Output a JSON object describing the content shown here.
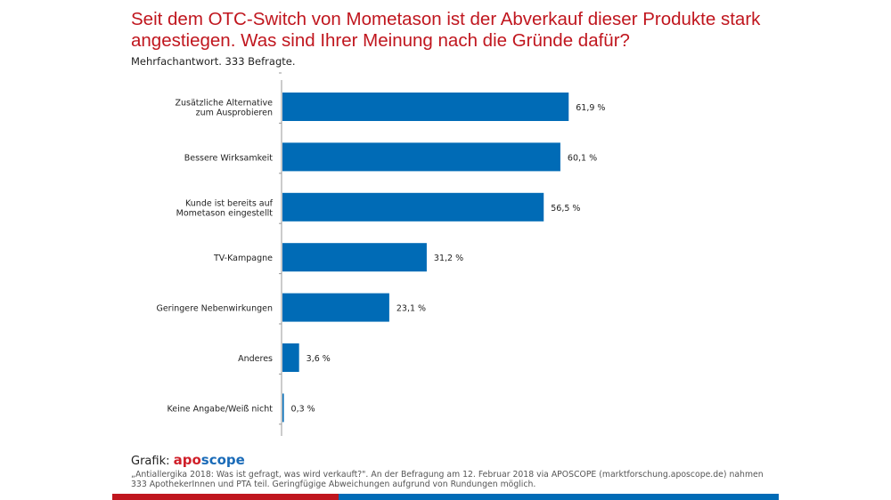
{
  "chart_data": {
    "type": "bar",
    "orientation": "horizontal",
    "title": "Seit dem OTC-Switch von Mometason ist der Abverkauf dieser Produkte stark angestiegen. Was sind Ihrer Meinung nach die Gründe dafür?",
    "subtitle": "Mehrfachantwort. 333 Befragte.",
    "categories": [
      [
        "Zusätzliche Alternative",
        "zum Ausprobieren"
      ],
      [
        "Bessere Wirksamkeit"
      ],
      [
        "Kunde ist bereits auf",
        "Mometason eingestellt"
      ],
      [
        "TV-Kampagne"
      ],
      [
        "Geringere Nebenwirkungen"
      ],
      [
        "Anderes"
      ],
      [
        "Keine Angabe/Weiß nicht"
      ]
    ],
    "values": [
      61.9,
      60.1,
      56.5,
      31.2,
      23.1,
      3.6,
      0.3
    ],
    "value_labels": [
      "61,9 %",
      "60,1 %",
      "56,5 %",
      "31,2 %",
      "23,1 %",
      "3,6 %",
      "0,3 %"
    ],
    "xlim": [
      0,
      100
    ],
    "grid": false,
    "bar_color": "#006bb6"
  },
  "footer": {
    "grafik_label": "Grafik:",
    "logo_part1": "apo",
    "logo_part2": "scope",
    "note": "„Antiallergika 2018: Was ist gefragt, was wird verkauft?\". An der Befragung am 12. Februar 2018 via APOSCOPE (marktforschung.aposcope.de) nahmen 333 ApothekerInnen und PTA teil. Geringfügige Abweichungen aufgrund von Rundungen möglich."
  },
  "colors": {
    "title": "#c0161e",
    "stripe_red": "#c0161e",
    "stripe_blue": "#006bb6"
  }
}
